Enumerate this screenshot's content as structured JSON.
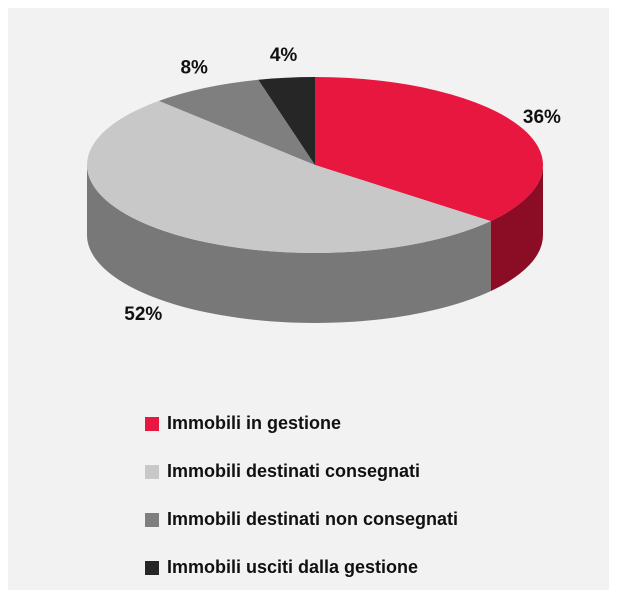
{
  "chart_data": {
    "type": "pie",
    "categories": [
      "Immobili in gestione",
      "Immobili destinati consegnati",
      "Immobili destinati non consegnati",
      "Immobili usciti dalla gestione"
    ],
    "values": [
      36,
      52,
      8,
      4
    ],
    "value_labels": [
      "36%",
      "52%",
      "8%",
      "4%"
    ],
    "colors": [
      "#e8173f",
      "#c8c8c8",
      "#7f7f7f",
      "#262626"
    ]
  }
}
